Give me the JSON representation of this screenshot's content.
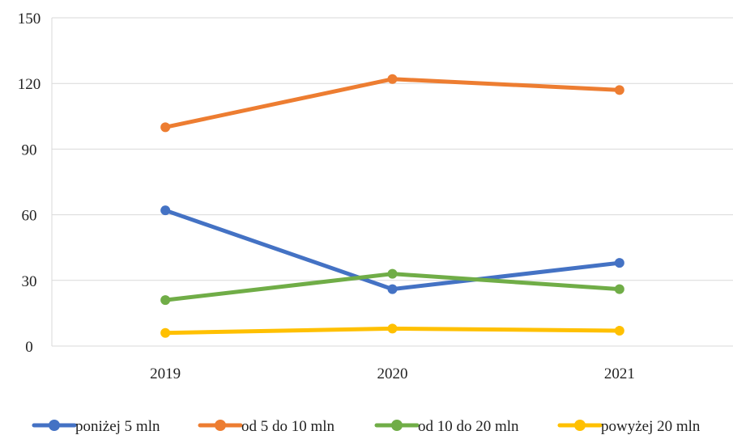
{
  "chart_data": {
    "type": "line",
    "x": [
      "2019",
      "2020",
      "2021"
    ],
    "ylim": [
      0,
      150
    ],
    "yticks": [
      0,
      30,
      60,
      90,
      120,
      150
    ],
    "grid": true,
    "legend_position": "bottom",
    "series": [
      {
        "name": "poniżej 5 mln",
        "color": "#4472C4",
        "values": [
          62,
          26,
          38
        ]
      },
      {
        "name": "od 5 do 10 mln",
        "color": "#ED7D31",
        "values": [
          100,
          122,
          117
        ]
      },
      {
        "name": "od 10 do 20 mln",
        "color": "#70AD47",
        "values": [
          21,
          33,
          26
        ]
      },
      {
        "name": "powyżej 20 mln",
        "color": "#FFC000",
        "values": [
          6,
          8,
          7
        ]
      }
    ]
  }
}
